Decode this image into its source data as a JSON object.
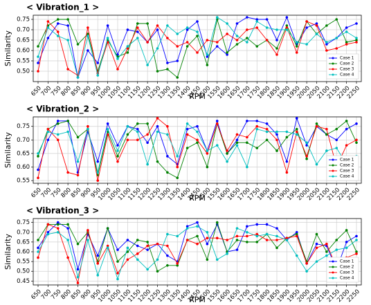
{
  "chart_data": [
    {
      "type": "line",
      "title": "< Vibration_1 >",
      "xlabel": "RPM",
      "ylabel": "Similarity",
      "categories": [
        650,
        700,
        750,
        800,
        850,
        900,
        950,
        1000,
        1050,
        1100,
        1150,
        1200,
        1250,
        1300,
        1350,
        1400,
        1450,
        1500,
        1550,
        1600,
        1650,
        1700,
        1750,
        1800,
        1850,
        1900,
        1950,
        2000,
        2050,
        2100,
        2150,
        2200,
        2250
      ],
      "series": [
        {
          "name": "Case 1",
          "color": "#0000ff",
          "values": [
            0.54,
            0.66,
            0.73,
            0.72,
            0.47,
            0.6,
            0.54,
            0.72,
            0.58,
            0.7,
            0.69,
            0.64,
            0.7,
            0.54,
            0.55,
            0.7,
            0.74,
            0.57,
            0.62,
            0.58,
            0.73,
            0.76,
            0.75,
            0.75,
            0.65,
            0.76,
            0.63,
            0.71,
            0.73,
            0.63,
            0.66,
            0.71,
            0.73
          ]
        },
        {
          "name": "Case 2",
          "color": "#008000",
          "values": [
            0.62,
            0.72,
            0.75,
            0.75,
            0.63,
            0.68,
            0.5,
            0.65,
            0.57,
            0.59,
            0.73,
            0.73,
            0.5,
            0.51,
            0.47,
            0.62,
            0.67,
            0.53,
            0.75,
            0.59,
            0.63,
            0.66,
            0.62,
            0.65,
            0.61,
            0.72,
            0.62,
            0.74,
            0.68,
            0.72,
            0.75,
            0.64,
            0.65
          ]
        },
        {
          "name": "Case 3",
          "color": "#ff0000",
          "values": [
            0.5,
            0.74,
            0.69,
            0.51,
            0.48,
            0.71,
            0.49,
            0.64,
            0.51,
            0.61,
            0.71,
            0.64,
            0.72,
            0.66,
            0.62,
            0.64,
            0.59,
            0.65,
            0.64,
            0.68,
            0.65,
            0.7,
            0.71,
            0.65,
            0.58,
            0.71,
            0.59,
            0.74,
            0.72,
            0.6,
            0.61,
            0.63,
            0.64
          ]
        },
        {
          "name": "Case 4",
          "color": "#00bfbf",
          "values": [
            0.57,
            0.71,
            0.67,
            0.65,
            0.47,
            0.67,
            0.48,
            0.66,
            0.56,
            0.62,
            0.66,
            0.53,
            0.61,
            0.72,
            0.68,
            0.71,
            0.69,
            0.58,
            0.76,
            0.73,
            0.67,
            0.64,
            0.74,
            0.71,
            0.7,
            0.7,
            0.64,
            0.63,
            0.68,
            0.64,
            0.66,
            0.69,
            0.66
          ]
        }
      ],
      "ylim": [
        0.45,
        0.77
      ],
      "yticks": [
        {
          "value": 0.5,
          "label": "0.50"
        },
        0.55,
        {
          "value": 0.6,
          "label": "0.60"
        },
        0.65,
        {
          "value": 0.7,
          "label": "0.70"
        },
        0.75
      ],
      "grid": true,
      "legend": "lower right"
    },
    {
      "type": "line",
      "title": "< Vibration_2 >",
      "xlabel": "RPM",
      "ylabel": "Similarity",
      "categories": [
        650,
        700,
        750,
        800,
        850,
        900,
        950,
        1000,
        1050,
        1100,
        1150,
        1200,
        1250,
        1300,
        1350,
        1400,
        1450,
        1500,
        1550,
        1600,
        1650,
        1700,
        1750,
        1800,
        1850,
        1900,
        1950,
        2000,
        2050,
        2100,
        2150,
        2200,
        2250
      ],
      "series": [
        {
          "name": "Case 1",
          "color": "#0000ff",
          "values": [
            0.59,
            0.7,
            0.77,
            0.77,
            0.58,
            0.73,
            0.62,
            0.76,
            0.68,
            0.75,
            0.74,
            0.69,
            0.75,
            0.64,
            0.61,
            0.74,
            0.75,
            0.66,
            0.77,
            0.65,
            0.7,
            0.77,
            0.77,
            0.76,
            0.72,
            0.62,
            0.78,
            0.68,
            0.75,
            0.72,
            0.7,
            0.74,
            0.76
          ]
        },
        {
          "name": "Case 2",
          "color": "#008000",
          "values": [
            0.64,
            0.74,
            0.76,
            0.77,
            0.71,
            0.74,
            0.57,
            0.73,
            0.64,
            0.72,
            0.76,
            0.76,
            0.62,
            0.58,
            0.56,
            0.67,
            0.69,
            0.6,
            0.76,
            0.65,
            0.69,
            0.69,
            0.67,
            0.7,
            0.66,
            0.71,
            0.74,
            0.63,
            0.76,
            0.72,
            0.74,
            0.77,
            0.69
          ]
        },
        {
          "name": "Case 3",
          "color": "#ff0000",
          "values": [
            0.56,
            0.74,
            0.7,
            0.58,
            0.57,
            0.75,
            0.55,
            0.72,
            0.62,
            0.7,
            0.7,
            0.72,
            0.78,
            0.75,
            0.6,
            0.72,
            0.7,
            0.65,
            0.76,
            0.66,
            0.72,
            0.71,
            0.75,
            0.74,
            0.7,
            0.58,
            0.73,
            0.64,
            0.75,
            0.74,
            0.6,
            0.68,
            0.7
          ]
        },
        {
          "name": "Case 4",
          "color": "#00bfbf",
          "values": [
            0.65,
            0.73,
            0.72,
            0.73,
            0.62,
            0.74,
            0.58,
            0.74,
            0.66,
            0.75,
            0.73,
            0.61,
            0.73,
            0.72,
            0.64,
            0.76,
            0.73,
            0.66,
            0.68,
            0.62,
            0.68,
            0.6,
            0.74,
            0.73,
            0.73,
            0.73,
            0.72,
            0.69,
            0.61,
            0.66,
            0.67,
            0.61,
            0.64
          ]
        }
      ],
      "ylim": [
        0.54,
        0.785
      ],
      "yticks": [
        0.55,
        {
          "value": 0.6,
          "label": "0.60"
        },
        0.65,
        {
          "value": 0.7,
          "label": "0.70"
        },
        0.75
      ],
      "grid": true,
      "legend": "lower right"
    },
    {
      "type": "line",
      "title": "< Vibration_3 >",
      "xlabel": "RPM",
      "ylabel": "Similarity",
      "categories": [
        650,
        700,
        750,
        800,
        850,
        900,
        950,
        1000,
        1050,
        1100,
        1150,
        1200,
        1250,
        1300,
        1350,
        1400,
        1450,
        1500,
        1550,
        1600,
        1650,
        1700,
        1750,
        1800,
        1850,
        1900,
        1950,
        2000,
        2050,
        2100,
        2150,
        2200,
        2250
      ],
      "series": [
        {
          "name": "Case 1",
          "color": "#0000ff",
          "values": [
            0.62,
            0.7,
            0.75,
            0.72,
            0.51,
            0.69,
            0.58,
            0.72,
            0.61,
            0.66,
            0.63,
            0.61,
            0.64,
            0.58,
            0.55,
            0.73,
            0.75,
            0.64,
            0.74,
            0.6,
            0.61,
            0.73,
            0.74,
            0.74,
            0.72,
            0.66,
            0.7,
            0.54,
            0.64,
            0.63,
            0.51,
            0.65,
            0.68
          ]
        },
        {
          "name": "Case 2",
          "color": "#008000",
          "values": [
            0.66,
            0.74,
            0.74,
            0.74,
            0.64,
            0.7,
            0.55,
            0.72,
            0.55,
            0.6,
            0.66,
            0.65,
            0.5,
            0.53,
            0.53,
            0.66,
            0.68,
            0.56,
            0.75,
            0.6,
            0.66,
            0.65,
            0.65,
            0.69,
            0.62,
            0.67,
            0.69,
            0.55,
            0.69,
            0.6,
            0.66,
            0.71,
            0.6
          ]
        },
        {
          "name": "Case 3",
          "color": "#ff0000",
          "values": [
            0.57,
            0.74,
            0.72,
            0.57,
            0.44,
            0.71,
            0.54,
            0.63,
            0.49,
            0.56,
            0.59,
            0.63,
            0.64,
            0.63,
            0.54,
            0.66,
            0.64,
            0.67,
            0.67,
            0.66,
            0.68,
            0.68,
            0.69,
            0.66,
            0.66,
            0.67,
            0.68,
            0.54,
            0.62,
            0.64,
            0.52,
            0.57,
            0.59
          ]
        },
        {
          "name": "Case 4",
          "color": "#00bfbf",
          "values": [
            0.6,
            0.69,
            0.7,
            0.66,
            0.47,
            0.66,
            0.48,
            0.62,
            0.46,
            0.62,
            0.56,
            0.51,
            0.56,
            0.69,
            0.68,
            0.72,
            0.73,
            0.7,
            0.56,
            0.59,
            0.72,
            0.7,
            0.68,
            0.69,
            0.68,
            0.66,
            0.58,
            0.5,
            0.55,
            0.58,
            0.61,
            0.62,
            0.66
          ]
        }
      ],
      "ylim": [
        0.43,
        0.77
      ],
      "yticks": [
        0.45,
        {
          "value": 0.5,
          "label": "0.50"
        },
        0.55,
        {
          "value": 0.6,
          "label": "0.60"
        },
        0.65,
        {
          "value": 0.7,
          "label": "0.70"
        },
        0.75
      ],
      "grid": true,
      "legend": "lower right"
    }
  ]
}
